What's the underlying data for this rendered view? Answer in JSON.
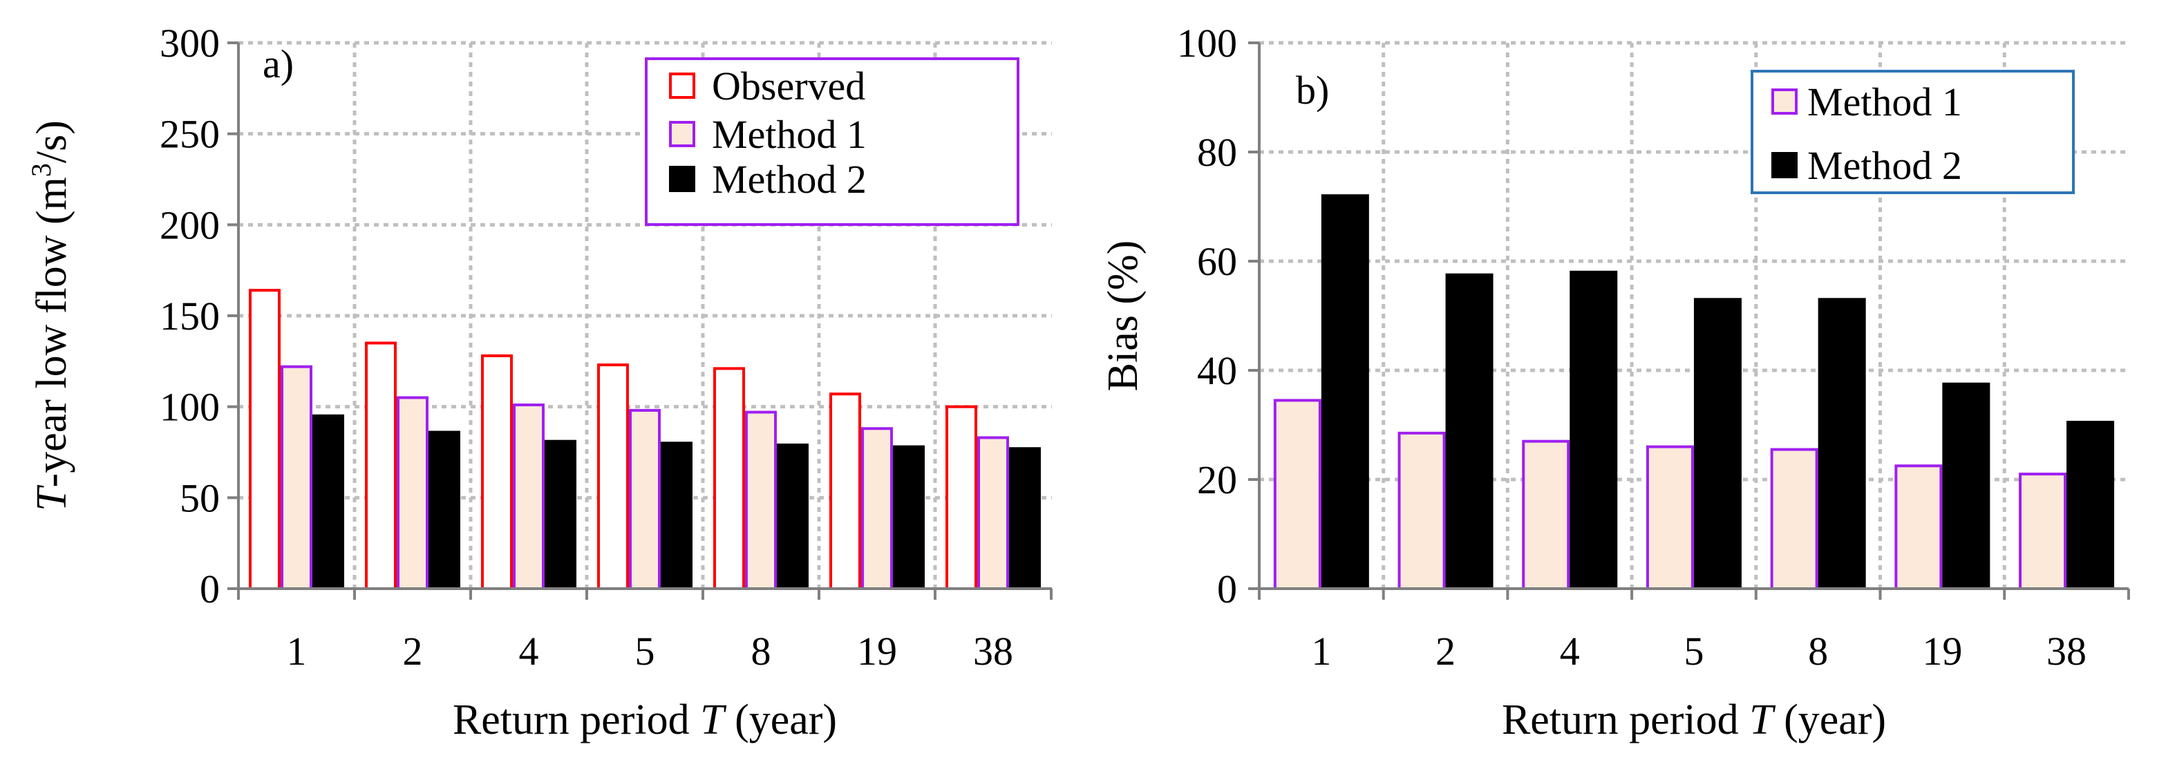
{
  "chart_data": [
    {
      "type": "bar",
      "panel_label": "a)",
      "xlabel_pre": "Return period ",
      "xlabel_italic": "T",
      "xlabel_post": " (year)",
      "ylabel_italic": "T",
      "ylabel_mid": "-year low flow (m",
      "ylabel_sup": "3",
      "ylabel_post": "/s)",
      "categories": [
        "1",
        "2",
        "4",
        "5",
        "8",
        "19",
        "38"
      ],
      "ylim": [
        0,
        300
      ],
      "yticks": [
        0,
        50,
        100,
        150,
        200,
        250,
        300
      ],
      "grid": true,
      "legend_position": "top-right",
      "legend_border": "#a020f0",
      "series": [
        {
          "name": "Observed",
          "values": [
            164,
            135,
            128,
            123,
            121,
            107,
            100
          ],
          "fill": "#ffffff",
          "stroke": "#ff0000"
        },
        {
          "name": "Method 1",
          "values": [
            122,
            105,
            101,
            98,
            97,
            88,
            83
          ],
          "fill": "#fde9d9",
          "stroke": "#a020f0"
        },
        {
          "name": "Method 2",
          "values": [
            95,
            86,
            81,
            80,
            79,
            78,
            77
          ],
          "fill": "#000000",
          "stroke": "#000000"
        }
      ]
    },
    {
      "type": "bar",
      "panel_label": "b)",
      "xlabel_pre": "Return period ",
      "xlabel_italic": "T",
      "xlabel_post": " (year)",
      "ylabel": "Bias (%)",
      "categories": [
        "1",
        "2",
        "4",
        "5",
        "8",
        "19",
        "38"
      ],
      "ylim": [
        0,
        100
      ],
      "yticks": [
        0,
        20,
        40,
        60,
        80,
        100
      ],
      "grid": true,
      "legend_position": "top-right",
      "legend_border": "#2e75b6",
      "series": [
        {
          "name": "Method 1",
          "values": [
            34.5,
            28.5,
            27,
            26,
            25.5,
            22.5,
            21
          ],
          "fill": "#fde9d9",
          "stroke": "#a020f0"
        },
        {
          "name": "Method 2",
          "values": [
            72,
            57.5,
            58,
            53,
            53,
            37.5,
            30.5
          ],
          "fill": "#000000",
          "stroke": "#000000"
        }
      ]
    }
  ]
}
